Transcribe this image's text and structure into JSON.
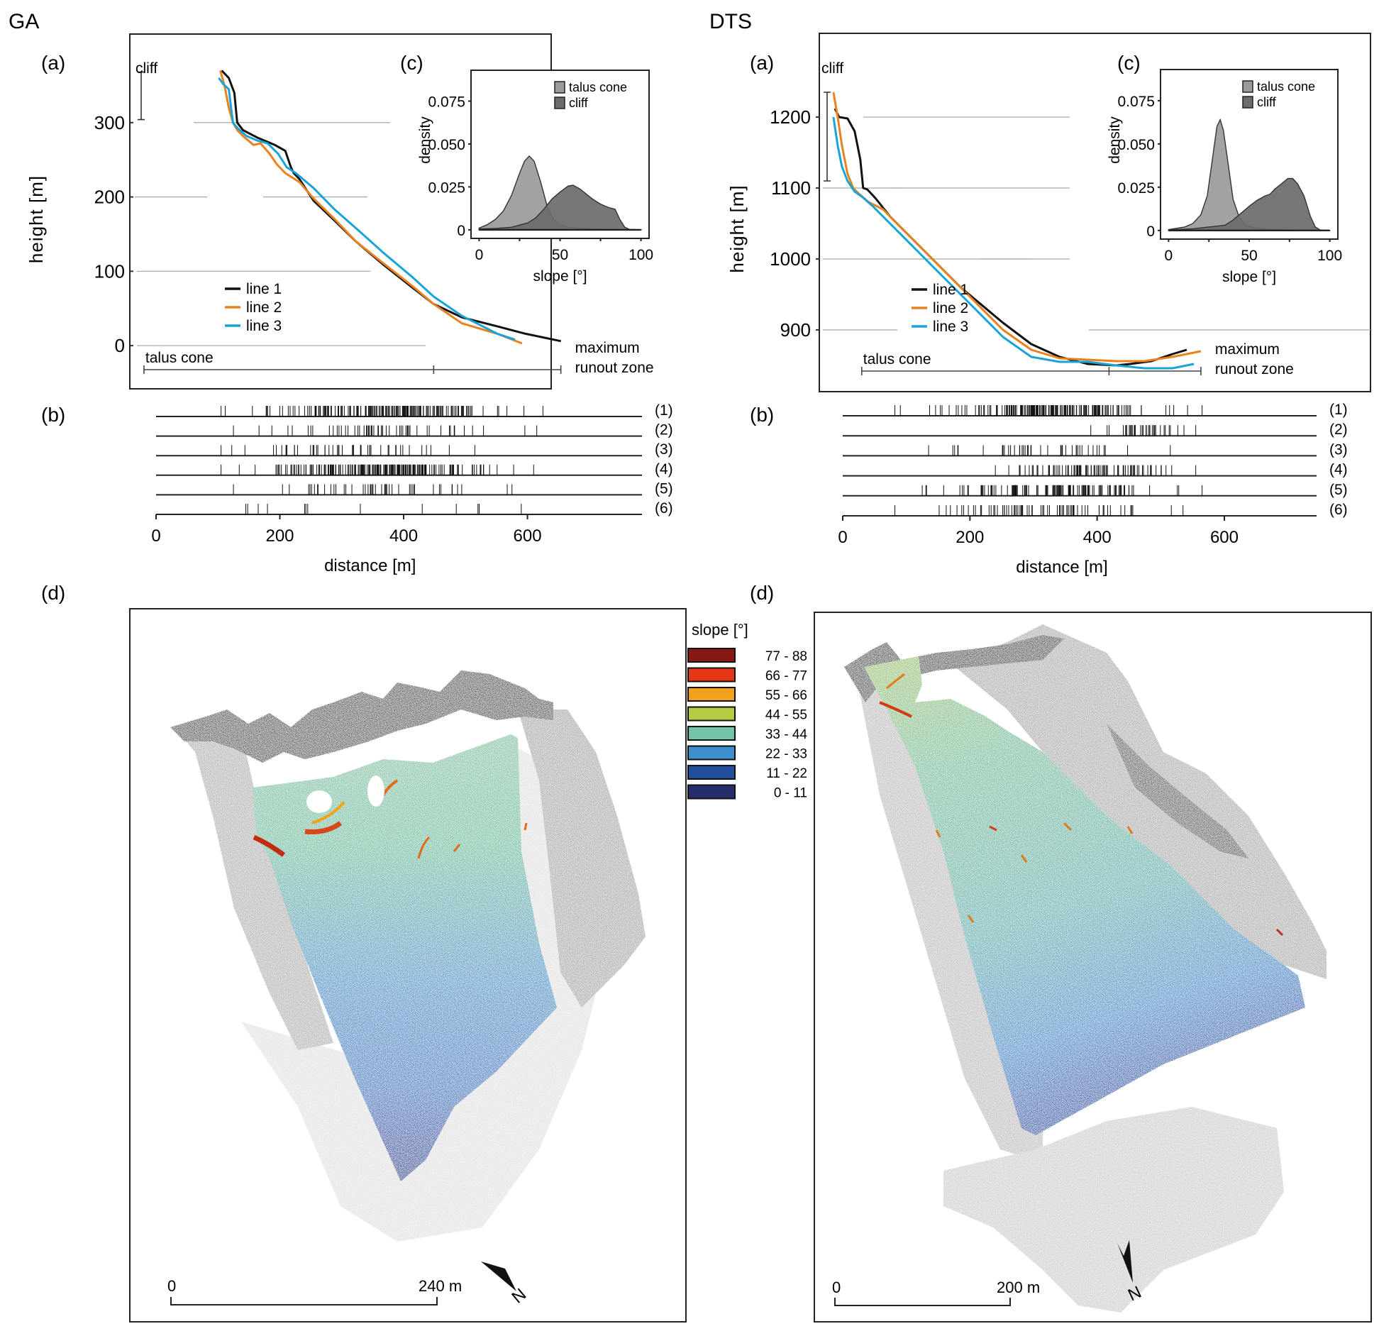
{
  "panel_titles": {
    "left": "GA",
    "right": "DTS"
  },
  "subpanel_labels": {
    "a": "(a)",
    "b": "(b)",
    "c": "(c)",
    "d": "(d)"
  },
  "chart_data": [
    {
      "id": "GA-a",
      "type": "line",
      "site": "GA",
      "ylabel": "height [m]",
      "yticks": [
        0,
        100,
        200,
        300
      ],
      "ylim": [
        -60,
        400
      ],
      "xlim": [
        0,
        780
      ],
      "grid": "horizontal, partial",
      "legend": "bottom-left",
      "annotations": {
        "cliff": "cliff",
        "talus_cone": "talus cone",
        "runout": [
          "maximum",
          "runout zone"
        ]
      },
      "cliff_range": [
        304,
        368
      ],
      "talus_range_x": [
        20,
        430
      ],
      "runout_range_x": [
        430,
        610
      ],
      "series": [
        {
          "name": "line 1",
          "color": "#111111",
          "x": [
            130,
            140,
            148,
            152,
            160,
            180,
            205,
            220,
            228,
            232,
            240,
            260,
            290,
            320,
            360,
            400,
            430,
            470,
            520,
            560,
            610
          ],
          "y": [
            370,
            360,
            340,
            300,
            290,
            280,
            270,
            262,
            240,
            232,
            224,
            195,
            168,
            140,
            108,
            78,
            56,
            38,
            26,
            16,
            6
          ]
        },
        {
          "name": "line 2",
          "color": "#e8821e",
          "x": [
            128,
            134,
            140,
            146,
            152,
            160,
            175,
            185,
            198,
            208,
            220,
            240,
            260,
            290,
            320,
            360,
            400,
            430,
            470,
            520,
            555
          ],
          "y": [
            370,
            350,
            320,
            300,
            290,
            282,
            270,
            272,
            258,
            244,
            232,
            220,
            198,
            170,
            140,
            110,
            80,
            56,
            30,
            16,
            3
          ]
        },
        {
          "name": "line 3",
          "color": "#19a3d6",
          "x": [
            126,
            132,
            140,
            146,
            152,
            165,
            180,
            195,
            210,
            222,
            235,
            260,
            290,
            320,
            360,
            400,
            430,
            470,
            520,
            545
          ],
          "y": [
            360,
            352,
            345,
            300,
            293,
            282,
            276,
            272,
            258,
            240,
            232,
            212,
            183,
            158,
            124,
            92,
            66,
            40,
            16,
            8
          ]
        }
      ]
    },
    {
      "id": "DTS-a",
      "type": "line",
      "site": "DTS",
      "ylabel": "height [m]",
      "yticks": [
        900,
        1000,
        1100,
        1200
      ],
      "ylim": [
        820,
        1265
      ],
      "xlim": [
        0,
        780
      ],
      "grid": "horizontal, partial",
      "legend": "bottom-left",
      "annotations": {
        "cliff": "cliff",
        "talus_cone": "talus cone",
        "runout": [
          "maximum",
          "runout zone"
        ]
      },
      "cliff_range": [
        1110,
        1235
      ],
      "talus_range_x": [
        60,
        410
      ],
      "runout_range_x": [
        410,
        540
      ],
      "series": [
        {
          "name": "line 1",
          "color": "#111111",
          "x": [
            22,
            28,
            40,
            50,
            58,
            62,
            68,
            80,
            100,
            120,
            160,
            200,
            260,
            300,
            340,
            380,
            420,
            440,
            470,
            500,
            520
          ],
          "y": [
            1212,
            1200,
            1198,
            1180,
            1140,
            1100,
            1098,
            1085,
            1060,
            1040,
            1000,
            960,
            910,
            880,
            862,
            852,
            850,
            852,
            856,
            866,
            872
          ]
        },
        {
          "name": "line 2",
          "color": "#e8821e",
          "x": [
            20,
            26,
            32,
            40,
            48,
            56,
            70,
            90,
            110,
            140,
            180,
            220,
            260,
            300,
            340,
            380,
            420,
            460,
            500,
            540
          ],
          "y": [
            1235,
            1200,
            1160,
            1120,
            1100,
            1092,
            1080,
            1070,
            1050,
            1020,
            980,
            940,
            900,
            872,
            860,
            858,
            856,
            856,
            862,
            870
          ]
        },
        {
          "name": "line 3",
          "color": "#19a3d6",
          "x": [
            20,
            26,
            32,
            40,
            50,
            60,
            75,
            90,
            110,
            140,
            180,
            220,
            260,
            300,
            340,
            380,
            420,
            460,
            500,
            530
          ],
          "y": [
            1200,
            1160,
            1130,
            1110,
            1095,
            1088,
            1075,
            1060,
            1040,
            1010,
            970,
            930,
            890,
            862,
            855,
            855,
            850,
            846,
            846,
            852
          ]
        }
      ]
    },
    {
      "id": "GA-b",
      "type": "scatter",
      "site": "GA",
      "kind": "rug",
      "xlabel": "distance [m]",
      "xticks": [
        0,
        200,
        400,
        600
      ],
      "xlim": [
        0,
        785
      ],
      "rows": [
        {
          "label": "(1)",
          "density": "very high",
          "range": [
            105,
            625
          ],
          "count": 180,
          "seed": 1
        },
        {
          "label": "(2)",
          "density": "medium",
          "range": [
            125,
            615
          ],
          "count": 55,
          "seed": 2
        },
        {
          "label": "(3)",
          "density": "medium",
          "range": [
            105,
            515
          ],
          "count": 48,
          "seed": 3
        },
        {
          "label": "(4)",
          "density": "very high",
          "range": [
            105,
            610
          ],
          "count": 200,
          "seed": 4
        },
        {
          "label": "(5)",
          "density": "medium",
          "range": [
            125,
            575
          ],
          "count": 45,
          "seed": 5
        },
        {
          "label": "(6)",
          "density": "low",
          "values": [
            145,
            148,
            165,
            180,
            240,
            242,
            245,
            330,
            430,
            485,
            520,
            522,
            590
          ]
        }
      ]
    },
    {
      "id": "DTS-b",
      "type": "scatter",
      "site": "DTS",
      "kind": "rug",
      "xlabel": "distance [m]",
      "xticks": [
        0,
        200,
        400,
        600
      ],
      "xlim": [
        0,
        745
      ],
      "rows": [
        {
          "label": "(1)",
          "density": "very high",
          "range": [
            82,
            565
          ],
          "count": 170,
          "seed": 11
        },
        {
          "label": "(2)",
          "density": "medium",
          "range": [
            390,
            555
          ],
          "count": 40,
          "seed": 12
        },
        {
          "label": "(3)",
          "density": "medium",
          "range": [
            135,
            515
          ],
          "count": 40,
          "seed": 13
        },
        {
          "label": "(4)",
          "density": "high",
          "range": [
            240,
            555
          ],
          "count": 80,
          "seed": 14
        },
        {
          "label": "(5)",
          "density": "very high",
          "range": [
            125,
            565
          ],
          "count": 120,
          "seed": 15
        },
        {
          "label": "(6)",
          "density": "medium",
          "range": [
            82,
            535
          ],
          "count": 70,
          "seed": 16
        }
      ]
    },
    {
      "id": "GA-c",
      "type": "area",
      "site": "GA",
      "xlabel": "slope [°]",
      "ylabel": "density",
      "xticks": [
        0,
        50,
        100
      ],
      "yticks": [
        0,
        0.025,
        0.05,
        0.075
      ],
      "ytick_labels": [
        "0",
        "0.025",
        "0.050",
        "0.075"
      ],
      "xlim": [
        -5,
        105
      ],
      "ylim": [
        -0.005,
        0.093
      ],
      "legend": "top-right",
      "series": [
        {
          "name": "talus cone",
          "color": "#9a9a9a",
          "x": [
            0,
            5,
            10,
            15,
            20,
            25,
            28,
            31,
            34,
            38,
            42,
            46,
            50,
            55,
            60,
            70,
            80,
            90,
            100
          ],
          "y": [
            0.001,
            0.003,
            0.006,
            0.011,
            0.02,
            0.033,
            0.04,
            0.043,
            0.04,
            0.028,
            0.014,
            0.006,
            0.003,
            0.0015,
            0.001,
            0.0005,
            0.0003,
            0.0002,
            0.0001
          ]
        },
        {
          "name": "cliff",
          "color": "#6b6b6b",
          "x": [
            0,
            10,
            20,
            30,
            35,
            40,
            45,
            50,
            55,
            58,
            62,
            66,
            70,
            75,
            80,
            84,
            87,
            90,
            93,
            100
          ],
          "y": [
            0.0005,
            0.0008,
            0.0015,
            0.004,
            0.007,
            0.012,
            0.018,
            0.022,
            0.0255,
            0.026,
            0.024,
            0.021,
            0.018,
            0.015,
            0.013,
            0.012,
            0.006,
            0.0015,
            0.0002,
            0.0
          ]
        }
      ]
    },
    {
      "id": "DTS-c",
      "type": "area",
      "site": "DTS",
      "xlabel": "slope [°]",
      "ylabel": "density",
      "xticks": [
        0,
        50,
        100
      ],
      "yticks": [
        0,
        0.025,
        0.05,
        0.075
      ],
      "ytick_labels": [
        "0",
        "0.025",
        "0.050",
        "0.075"
      ],
      "xlim": [
        -5,
        105
      ],
      "ylim": [
        -0.005,
        0.093
      ],
      "legend": "top-right",
      "series": [
        {
          "name": "talus cone",
          "color": "#9a9a9a",
          "x": [
            0,
            10,
            15,
            20,
            24,
            27,
            30,
            32,
            34,
            37,
            40,
            44,
            48,
            55,
            65,
            80,
            100
          ],
          "y": [
            0.0005,
            0.002,
            0.004,
            0.009,
            0.02,
            0.04,
            0.06,
            0.064,
            0.058,
            0.038,
            0.018,
            0.007,
            0.003,
            0.0012,
            0.0005,
            0.0002,
            0.0001
          ]
        },
        {
          "name": "cliff",
          "color": "#6b6b6b",
          "x": [
            0,
            15,
            25,
            35,
            40,
            45,
            50,
            55,
            60,
            63,
            66,
            70,
            74,
            77,
            80,
            84,
            88,
            91,
            94,
            100
          ],
          "y": [
            0.0003,
            0.001,
            0.002,
            0.003,
            0.006,
            0.01,
            0.014,
            0.0175,
            0.02,
            0.021,
            0.024,
            0.027,
            0.03,
            0.03,
            0.027,
            0.02,
            0.008,
            0.002,
            0.0003,
            0.0
          ]
        }
      ]
    }
  ],
  "maps": {
    "legend_title": "slope [°]",
    "legend": [
      {
        "label": "77 - 88",
        "color": "#861914"
      },
      {
        "label": "66 - 77",
        "color": "#e53617"
      },
      {
        "label": "55 - 66",
        "color": "#f2a11d"
      },
      {
        "label": "44 - 55",
        "color": "#b3cc40"
      },
      {
        "label": "33 - 44",
        "color": "#72c4a6"
      },
      {
        "label": "22 - 33",
        "color": "#3d8fcc"
      },
      {
        "label": "11 - 22",
        "color": "#234e9c"
      },
      {
        "label": "0 - 11",
        "color": "#262d6b"
      }
    ],
    "GA": {
      "scalebar_start": "0",
      "scalebar_end": "240 m",
      "north_label": "N"
    },
    "DTS": {
      "scalebar_start": "0",
      "scalebar_end": "200 m",
      "north_label": "N"
    }
  }
}
